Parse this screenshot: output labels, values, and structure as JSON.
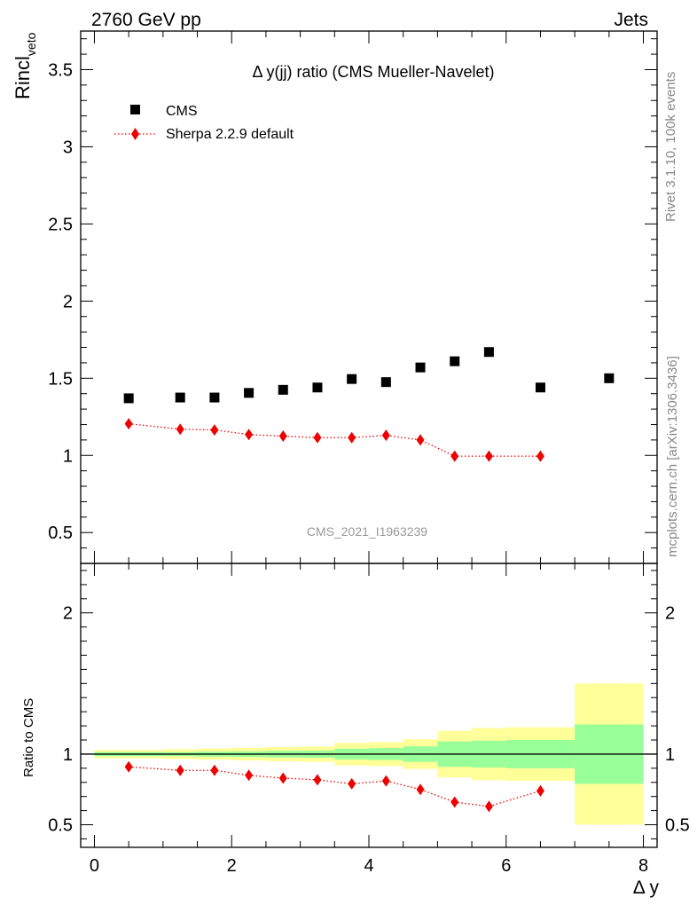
{
  "header": {
    "energy_label": "2760 GeV pp",
    "process_label": "Jets"
  },
  "side_labels": {
    "rivet": "Rivet 3.1.10,  100k events",
    "mcplots": "mcplots.cern.ch [arXiv:1306.3436]"
  },
  "chart_data": [
    {
      "type": "scatter",
      "title": "Δ y(jj) ratio (CMS Mueller-Navelet)",
      "ylabel_main": "Rincl",
      "ylabel_sub": "veto",
      "watermark": "CMS_2021_I1963239",
      "ylim": [
        0.3,
        3.75
      ],
      "ytick_labels": [
        "0.5",
        "1",
        "1.5",
        "2",
        "2.5",
        "3",
        "3.5"
      ],
      "legend_position": "top-left",
      "series": [
        {
          "name": "CMS",
          "marker": "square",
          "color": "#000000",
          "x": [
            0.5,
            1.25,
            1.75,
            2.25,
            2.75,
            3.25,
            3.75,
            4.25,
            4.75,
            5.25,
            5.75,
            6.5,
            7.5
          ],
          "y": [
            1.37,
            1.375,
            1.375,
            1.405,
            1.425,
            1.44,
            1.495,
            1.475,
            1.57,
            1.61,
            1.67,
            1.44,
            1.5
          ]
        },
        {
          "name": "Sherpa 2.2.9 default",
          "marker": "diamond",
          "color": "#ee0000",
          "line": "dotted",
          "x": [
            0.5,
            1.25,
            1.75,
            2.25,
            2.75,
            3.25,
            3.75,
            4.25,
            4.75,
            5.25,
            5.75,
            6.5
          ],
          "y": [
            1.205,
            1.17,
            1.165,
            1.135,
            1.125,
            1.115,
            1.115,
            1.13,
            1.1,
            0.995,
            0.995,
            0.995
          ],
          "yerr": [
            0.02,
            0.02,
            0.02,
            0.02,
            0.02,
            0.02,
            0.02,
            0.03,
            0.035,
            0.01,
            0.01,
            0.01
          ]
        }
      ]
    },
    {
      "type": "scatter",
      "ylabel": "Ratio to CMS",
      "xlabel": "Δ y",
      "xlim": [
        -0.2,
        8.2
      ],
      "ylim": [
        0.34,
        2.35
      ],
      "xtick_labels": [
        "0",
        "2",
        "4",
        "6",
        "8"
      ],
      "ytick_labels": [
        "0.5",
        "1",
        "2"
      ],
      "bands": {
        "edges": [
          0,
          1.0,
          1.5,
          2.0,
          2.5,
          3.0,
          3.5,
          4.0,
          4.5,
          5.0,
          5.5,
          6.0,
          7.0,
          8.0
        ],
        "stat_color": "#99ff99",
        "total_color": "#ffff99",
        "stat_lo": [
          0.985,
          0.985,
          0.982,
          0.98,
          0.977,
          0.975,
          0.962,
          0.958,
          0.945,
          0.91,
          0.905,
          0.9,
          0.79
        ],
        "stat_hi": [
          1.015,
          1.015,
          1.018,
          1.02,
          1.023,
          1.025,
          1.038,
          1.042,
          1.055,
          1.09,
          1.095,
          1.1,
          1.21
        ],
        "tot_lo": [
          0.97,
          0.965,
          0.96,
          0.955,
          0.95,
          0.945,
          0.92,
          0.915,
          0.895,
          0.835,
          0.815,
          0.81,
          0.5
        ],
        "tot_hi": [
          1.03,
          1.035,
          1.04,
          1.045,
          1.05,
          1.055,
          1.08,
          1.085,
          1.105,
          1.165,
          1.185,
          1.19,
          1.5
        ]
      },
      "reference_line": 1.0,
      "series": [
        {
          "name": "Sherpa 2.2.9 default",
          "marker": "diamond",
          "color": "#ee0000",
          "line": "dotted",
          "x": [
            0.5,
            1.25,
            1.75,
            2.25,
            2.75,
            3.25,
            3.75,
            4.25,
            4.75,
            5.25,
            5.75,
            6.5
          ],
          "y": [
            0.91,
            0.885,
            0.885,
            0.85,
            0.83,
            0.818,
            0.79,
            0.81,
            0.75,
            0.66,
            0.63,
            0.74
          ],
          "yerr": [
            0.012,
            0.012,
            0.012,
            0.012,
            0.012,
            0.012,
            0.014,
            0.02,
            0.02,
            0.01,
            0.01,
            0.01
          ]
        }
      ]
    }
  ]
}
